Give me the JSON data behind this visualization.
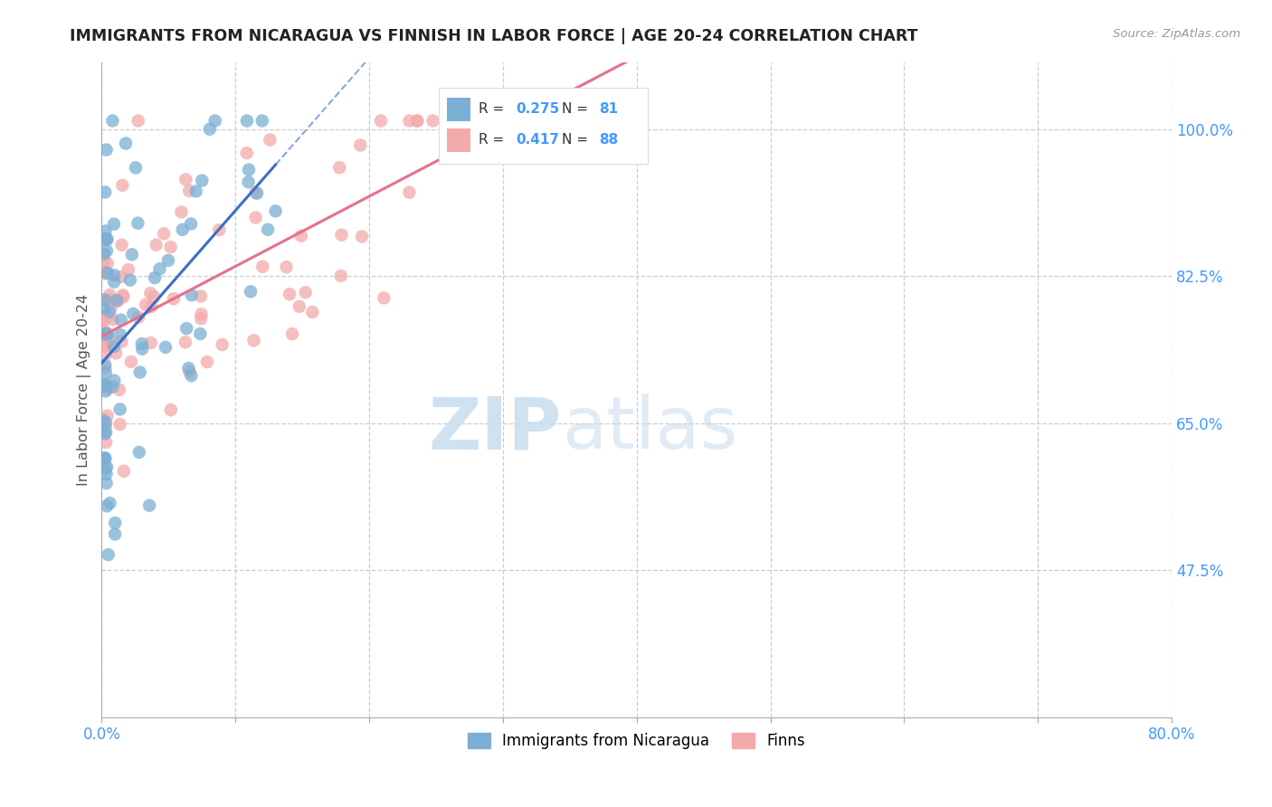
{
  "title": "IMMIGRANTS FROM NICARAGUA VS FINNISH IN LABOR FORCE | AGE 20-24 CORRELATION CHART",
  "source": "Source: ZipAtlas.com",
  "ylabel": "In Labor Force | Age 20-24",
  "xlim": [
    0.0,
    0.8
  ],
  "ylim": [
    0.3,
    1.08
  ],
  "ytick_positions": [
    0.475,
    0.65,
    0.825,
    1.0
  ],
  "ytick_labels": [
    "47.5%",
    "65.0%",
    "82.5%",
    "100.0%"
  ],
  "blue_color": "#7BAFD4",
  "pink_color": "#F4AAAA",
  "blue_line_color": "#3B6FC9",
  "pink_line_color": "#E8708A",
  "watermark_zip": "ZIP",
  "watermark_atlas": "atlas",
  "legend_r1": "0.275",
  "legend_n1": "81",
  "legend_r2": "0.417",
  "legend_n2": "88",
  "blue_label": "Immigrants from Nicaragua",
  "pink_label": "Finns"
}
